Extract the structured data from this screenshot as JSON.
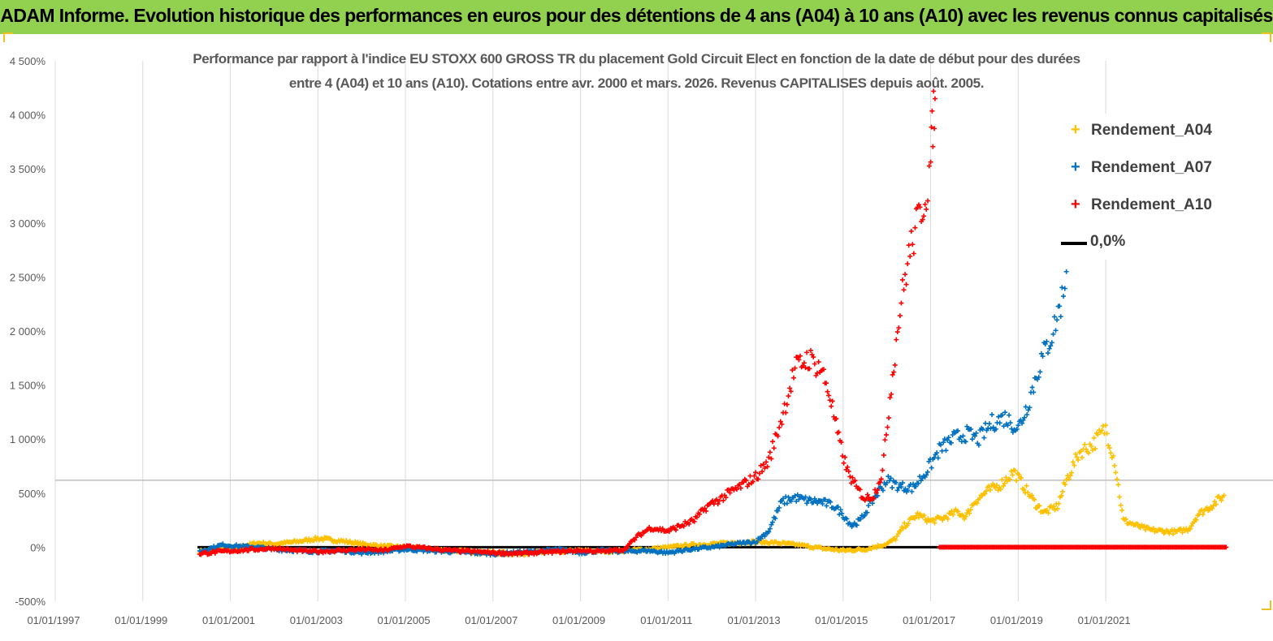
{
  "banner": {
    "title": "ADAM Informe. Evolution historique des performances en euros pour des détentions de 4 ans (A04) à 10 ans (A10) avec les revenus connus capitalisés",
    "background_color": "#92d050"
  },
  "chart_data": {
    "type": "scatter",
    "title_line1": "Performance par rapport à l'indice EU STOXX 600 GROSS TR  du placement Gold Circuit Elect  en fonction de la date de début pour des durées",
    "title_line2": "entre 4 (A04) et 10 ans (A10). Cotations entre avr. 2000 et mars. 2026. Revenus CAPITALISES depuis août. 2005.",
    "ylim": [
      -500,
      4500
    ],
    "yticks": [
      -500,
      0,
      500,
      1000,
      1500,
      2000,
      2500,
      3000,
      3500,
      4000,
      4500
    ],
    "ytick_labels": [
      "-500%",
      "0%",
      "500%",
      "1 000%",
      "1 500%",
      "2 000%",
      "2 500%",
      "3 000%",
      "3 500%",
      "4 000%",
      "4 500%"
    ],
    "xlim": [
      1997.0,
      2023.8
    ],
    "xticks": [
      1997,
      1999,
      2001,
      2003,
      2005,
      2007,
      2009,
      2011,
      2013,
      2015,
      2017,
      2019,
      2021
    ],
    "xtick_labels": [
      "01/01/1997",
      "01/01/1999",
      "01/01/2001",
      "01/01/2003",
      "01/01/2005",
      "01/01/2007",
      "01/01/2009",
      "01/01/2011",
      "01/01/2013",
      "01/01/2015",
      "01/01/2017",
      "01/01/2019",
      "01/01/2021"
    ],
    "reference_line_value": 620,
    "legend": [
      {
        "key": "A04",
        "label": "Rendement_A04"
      },
      {
        "key": "A07",
        "label": "Rendement_A07"
      },
      {
        "key": "A10",
        "label": "Rendement_A10"
      },
      {
        "key": "zero",
        "label": "0,0%"
      }
    ],
    "colors": {
      "A04": "#ffc000",
      "A07": "#0070c0",
      "A10": "#ff0000",
      "zero": "#000000",
      "grid": "#d9d9d9",
      "axis_text": "#595959"
    },
    "zero_line": {
      "x_start": 2000.25,
      "x_end": 2023.75,
      "value": 0
    },
    "series": [
      {
        "name": "Rendement_A04",
        "key": "A04",
        "points": [
          [
            2000.3,
            -40
          ],
          [
            2000.8,
            -10
          ],
          [
            2001.2,
            0
          ],
          [
            2001.6,
            40
          ],
          [
            2002.0,
            30
          ],
          [
            2002.5,
            50
          ],
          [
            2003.0,
            80
          ],
          [
            2003.5,
            60
          ],
          [
            2004.0,
            30
          ],
          [
            2004.5,
            10
          ],
          [
            2005.0,
            0
          ],
          [
            2005.5,
            -20
          ],
          [
            2006.0,
            -30
          ],
          [
            2006.5,
            -40
          ],
          [
            2007.0,
            -50
          ],
          [
            2007.5,
            -60
          ],
          [
            2008.0,
            -50
          ],
          [
            2008.5,
            -40
          ],
          [
            2009.0,
            -30
          ],
          [
            2009.5,
            -40
          ],
          [
            2010.0,
            -30
          ],
          [
            2010.5,
            -20
          ],
          [
            2011.0,
            0
          ],
          [
            2011.5,
            20
          ],
          [
            2012.0,
            30
          ],
          [
            2012.5,
            40
          ],
          [
            2013.0,
            50
          ],
          [
            2013.5,
            40
          ],
          [
            2014.0,
            20
          ],
          [
            2014.5,
            -10
          ],
          [
            2015.0,
            -30
          ],
          [
            2015.5,
            -20
          ],
          [
            2016.0,
            30
          ],
          [
            2016.2,
            80
          ],
          [
            2016.4,
            200
          ],
          [
            2016.7,
            300
          ],
          [
            2017.0,
            240
          ],
          [
            2017.3,
            270
          ],
          [
            2017.6,
            330
          ],
          [
            2017.8,
            280
          ],
          [
            2018.0,
            420
          ],
          [
            2018.3,
            520
          ],
          [
            2018.6,
            580
          ],
          [
            2018.9,
            700
          ],
          [
            2019.1,
            580
          ],
          [
            2019.4,
            400
          ],
          [
            2019.6,
            320
          ],
          [
            2019.9,
            380
          ],
          [
            2020.1,
            620
          ],
          [
            2020.4,
            880
          ],
          [
            2020.7,
            950
          ],
          [
            2021.0,
            1100
          ],
          [
            2021.2,
            800
          ],
          [
            2021.4,
            250
          ],
          [
            2021.7,
            200
          ],
          [
            2022.0,
            160
          ],
          [
            2022.3,
            150
          ],
          [
            2022.6,
            140
          ],
          [
            2022.9,
            170
          ],
          [
            2023.1,
            300
          ],
          [
            2023.4,
            380
          ],
          [
            2023.7,
            480
          ]
        ]
      },
      {
        "name": "Rendement_A07",
        "key": "A07",
        "points": [
          [
            2000.3,
            -40
          ],
          [
            2000.8,
            20
          ],
          [
            2001.2,
            10
          ],
          [
            2001.6,
            0
          ],
          [
            2002.0,
            -20
          ],
          [
            2002.5,
            -30
          ],
          [
            2003.0,
            -40
          ],
          [
            2003.5,
            -30
          ],
          [
            2004.0,
            -50
          ],
          [
            2004.5,
            -40
          ],
          [
            2005.0,
            -20
          ],
          [
            2005.5,
            -30
          ],
          [
            2006.0,
            -40
          ],
          [
            2006.5,
            -50
          ],
          [
            2007.0,
            -60
          ],
          [
            2007.5,
            -50
          ],
          [
            2008.0,
            -40
          ],
          [
            2008.5,
            -20
          ],
          [
            2009.0,
            -50
          ],
          [
            2009.5,
            -30
          ],
          [
            2010.0,
            -40
          ],
          [
            2010.5,
            -30
          ],
          [
            2011.0,
            -50
          ],
          [
            2011.5,
            -20
          ],
          [
            2012.0,
            0
          ],
          [
            2012.5,
            30
          ],
          [
            2013.0,
            50
          ],
          [
            2013.3,
            150
          ],
          [
            2013.6,
            420
          ],
          [
            2013.9,
            460
          ],
          [
            2014.2,
            430
          ],
          [
            2014.5,
            420
          ],
          [
            2014.8,
            380
          ],
          [
            2015.0,
            300
          ],
          [
            2015.2,
            200
          ],
          [
            2015.4,
            250
          ],
          [
            2015.7,
            450
          ],
          [
            2016.0,
            620
          ],
          [
            2016.3,
            560
          ],
          [
            2016.6,
            550
          ],
          [
            2016.9,
            700
          ],
          [
            2017.2,
            900
          ],
          [
            2017.5,
            1000
          ],
          [
            2017.8,
            1050
          ],
          [
            2018.1,
            1000
          ],
          [
            2018.4,
            1150
          ],
          [
            2018.7,
            1200
          ],
          [
            2019.0,
            1100
          ],
          [
            2019.2,
            1300
          ],
          [
            2019.5,
            1700
          ],
          [
            2019.8,
            2000
          ],
          [
            2020.0,
            2300
          ],
          [
            2020.1,
            2550
          ]
        ]
      },
      {
        "name": "Rendement_A10",
        "key": "A10",
        "points": [
          [
            2000.3,
            -60
          ],
          [
            2000.8,
            -40
          ],
          [
            2001.2,
            -30
          ],
          [
            2001.6,
            -20
          ],
          [
            2002.0,
            -10
          ],
          [
            2002.5,
            -30
          ],
          [
            2003.0,
            -40
          ],
          [
            2003.5,
            -30
          ],
          [
            2004.0,
            -20
          ],
          [
            2004.5,
            -30
          ],
          [
            2005.0,
            10
          ],
          [
            2005.5,
            -10
          ],
          [
            2006.0,
            -30
          ],
          [
            2006.5,
            -40
          ],
          [
            2007.0,
            -50
          ],
          [
            2007.5,
            -60
          ],
          [
            2008.0,
            -50
          ],
          [
            2008.5,
            -40
          ],
          [
            2009.0,
            -30
          ],
          [
            2009.5,
            -40
          ],
          [
            2010.0,
            -20
          ],
          [
            2010.3,
            100
          ],
          [
            2010.6,
            180
          ],
          [
            2011.0,
            150
          ],
          [
            2011.3,
            200
          ],
          [
            2011.6,
            250
          ],
          [
            2011.9,
            380
          ],
          [
            2012.2,
            450
          ],
          [
            2012.6,
            550
          ],
          [
            2013.0,
            650
          ],
          [
            2013.3,
            800
          ],
          [
            2013.6,
            1200
          ],
          [
            2013.9,
            1650
          ],
          [
            2014.2,
            1750
          ],
          [
            2014.5,
            1650
          ],
          [
            2014.7,
            1400
          ],
          [
            2014.9,
            1000
          ],
          [
            2015.1,
            700
          ],
          [
            2015.3,
            550
          ],
          [
            2015.5,
            450
          ],
          [
            2015.7,
            480
          ],
          [
            2015.9,
            700
          ],
          [
            2016.1,
            1500
          ],
          [
            2016.3,
            2200
          ],
          [
            2016.5,
            2700
          ],
          [
            2016.7,
            3000
          ],
          [
            2016.9,
            3300
          ],
          [
            2017.0,
            3550
          ],
          [
            2017.05,
            3940
          ],
          [
            2017.1,
            4150
          ]
        ]
      },
      {
        "name": "Rendement_A10_zero",
        "key": "A10",
        "points": [
          [
            2017.2,
            0
          ],
          [
            2018.0,
            0
          ],
          [
            2019.0,
            0
          ],
          [
            2020.0,
            0
          ],
          [
            2021.0,
            0
          ],
          [
            2022.0,
            0
          ],
          [
            2023.0,
            0
          ],
          [
            2023.75,
            0
          ]
        ]
      }
    ]
  }
}
